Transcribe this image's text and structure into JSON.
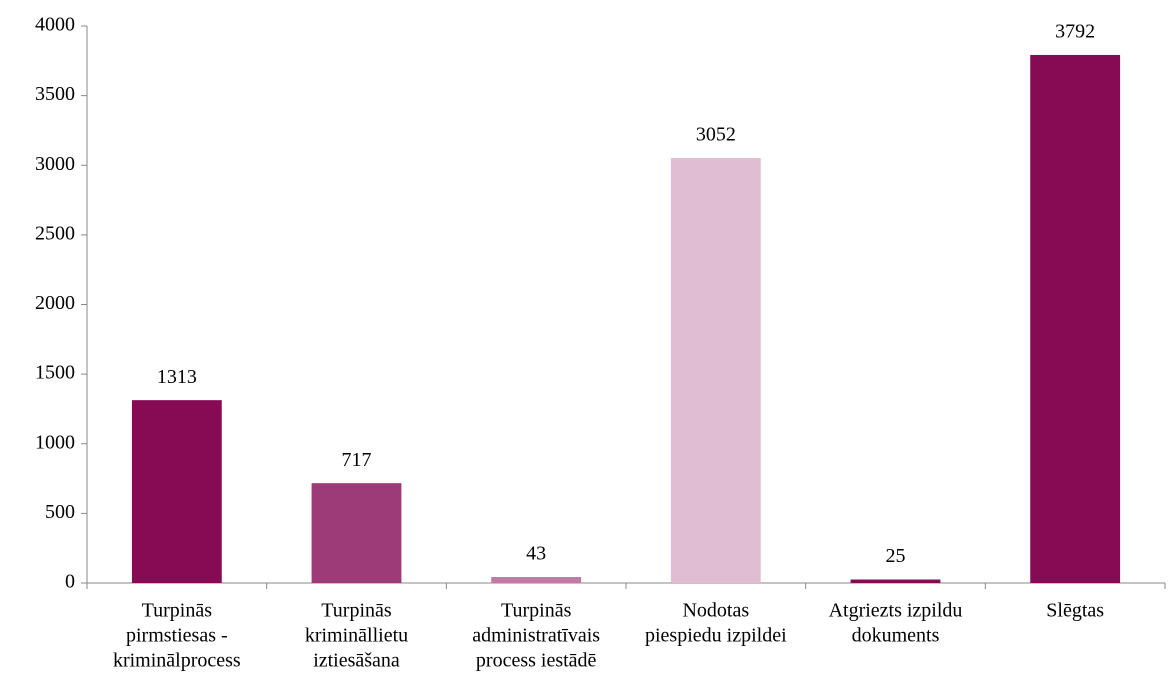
{
  "chart_data": {
    "type": "bar",
    "categories": [
      [
        "Turpinās",
        "pirmstiesas -",
        "kriminālprocess"
      ],
      [
        "Turpinās",
        "krimināllietu",
        "iztiesāšana"
      ],
      [
        "Turpinās",
        "administratīvais",
        "process iestādē"
      ],
      [
        "Nodotas",
        "piespiedu izpildei"
      ],
      [
        "Atgriezts izpildu",
        "dokuments"
      ],
      [
        "Slēgtas"
      ]
    ],
    "values": [
      1313,
      717,
      43,
      3052,
      25,
      3792
    ],
    "colors": [
      "#870a55",
      "#9c3b78",
      "#bf7aa8",
      "#e0bdd3",
      "#870a55",
      "#870a55"
    ],
    "ylim": [
      0,
      4000
    ],
    "yticks": [
      0,
      500,
      1000,
      1500,
      2000,
      2500,
      3000,
      3500,
      4000
    ],
    "grid": false
  }
}
